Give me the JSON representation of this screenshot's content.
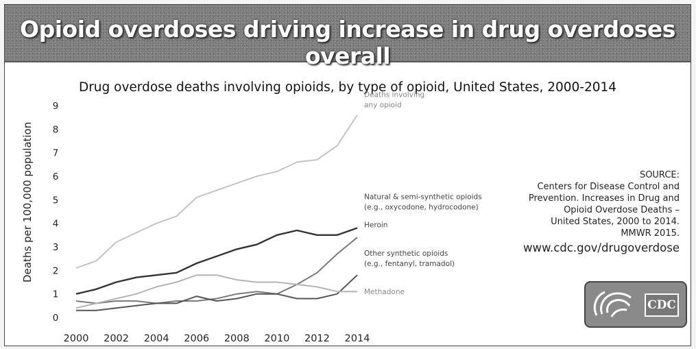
{
  "header": {
    "title": "Opioid overdoses driving increase in drug overdoses overall"
  },
  "chart_data": {
    "type": "line",
    "title": "Drug overdose deaths involving opioids, by type of opioid, United States, 2000-2014",
    "xlabel": "",
    "ylabel": "Deaths per 100,000 population",
    "x": [
      2000,
      2001,
      2002,
      2003,
      2004,
      2005,
      2006,
      2007,
      2008,
      2009,
      2010,
      2011,
      2012,
      2013,
      2014
    ],
    "xticks": [
      "2000",
      "2002",
      "2004",
      "2006",
      "2008",
      "2010",
      "2012",
      "2014"
    ],
    "yticks": [
      "0",
      "1",
      "2",
      "3",
      "4",
      "5",
      "6",
      "7",
      "8",
      "9"
    ],
    "xlim": [
      2000,
      2014
    ],
    "ylim": [
      0,
      9
    ],
    "grid": false,
    "series": [
      {
        "name": "Deaths involving any opioid",
        "label_lines": [
          "Deaths involving",
          "any opioid"
        ],
        "color": "#c4c4c4",
        "values": [
          2.1,
          2.4,
          3.2,
          3.6,
          4.0,
          4.3,
          5.1,
          5.4,
          5.7,
          6.0,
          6.2,
          6.6,
          6.7,
          7.3,
          8.6
        ]
      },
      {
        "name": "Natural & semi-synthetic opioids (e.g., oxycodone, hydrocodone)",
        "label_lines": [
          "Natural & semi-synthetic opioids",
          "(e.g., oxycodone, hydrocodone)"
        ],
        "color": "#333333",
        "values": [
          1.0,
          1.2,
          1.5,
          1.7,
          1.8,
          1.9,
          2.3,
          2.6,
          2.9,
          3.1,
          3.5,
          3.7,
          3.5,
          3.5,
          3.8
        ]
      },
      {
        "name": "Heroin",
        "label_lines": [
          "Heroin"
        ],
        "color": "#7a7a7a",
        "values": [
          0.7,
          0.6,
          0.7,
          0.7,
          0.6,
          0.7,
          0.7,
          0.8,
          1.0,
          1.1,
          1.0,
          1.4,
          1.9,
          2.7,
          3.4
        ]
      },
      {
        "name": "Other synthetic opioids (e.g., fentanyl, tramadol)",
        "label_lines": [
          "Other synthetic opioids",
          "(e.g., fentanyl, tramadol)"
        ],
        "color": "#555555",
        "values": [
          0.3,
          0.3,
          0.4,
          0.5,
          0.6,
          0.6,
          0.9,
          0.7,
          0.8,
          1.0,
          1.0,
          0.8,
          0.8,
          1.0,
          1.8
        ]
      },
      {
        "name": "Methadone",
        "label_lines": [
          "Methadone"
        ],
        "color": "#b4b4b4",
        "values": [
          0.4,
          0.6,
          0.8,
          1.0,
          1.3,
          1.5,
          1.8,
          1.8,
          1.6,
          1.5,
          1.5,
          1.4,
          1.3,
          1.1,
          1.1
        ]
      }
    ]
  },
  "source": {
    "lines": [
      "SOURCE:",
      "Centers for Disease Control and",
      "Prevention. Increases in Drug and",
      "Opioid Overdose Deaths –",
      "United States, 2000 to 2014.",
      "MMWR 2015."
    ],
    "url": "www.cdc.gov/drugoverdose"
  },
  "logo": {
    "text": "CDC"
  }
}
